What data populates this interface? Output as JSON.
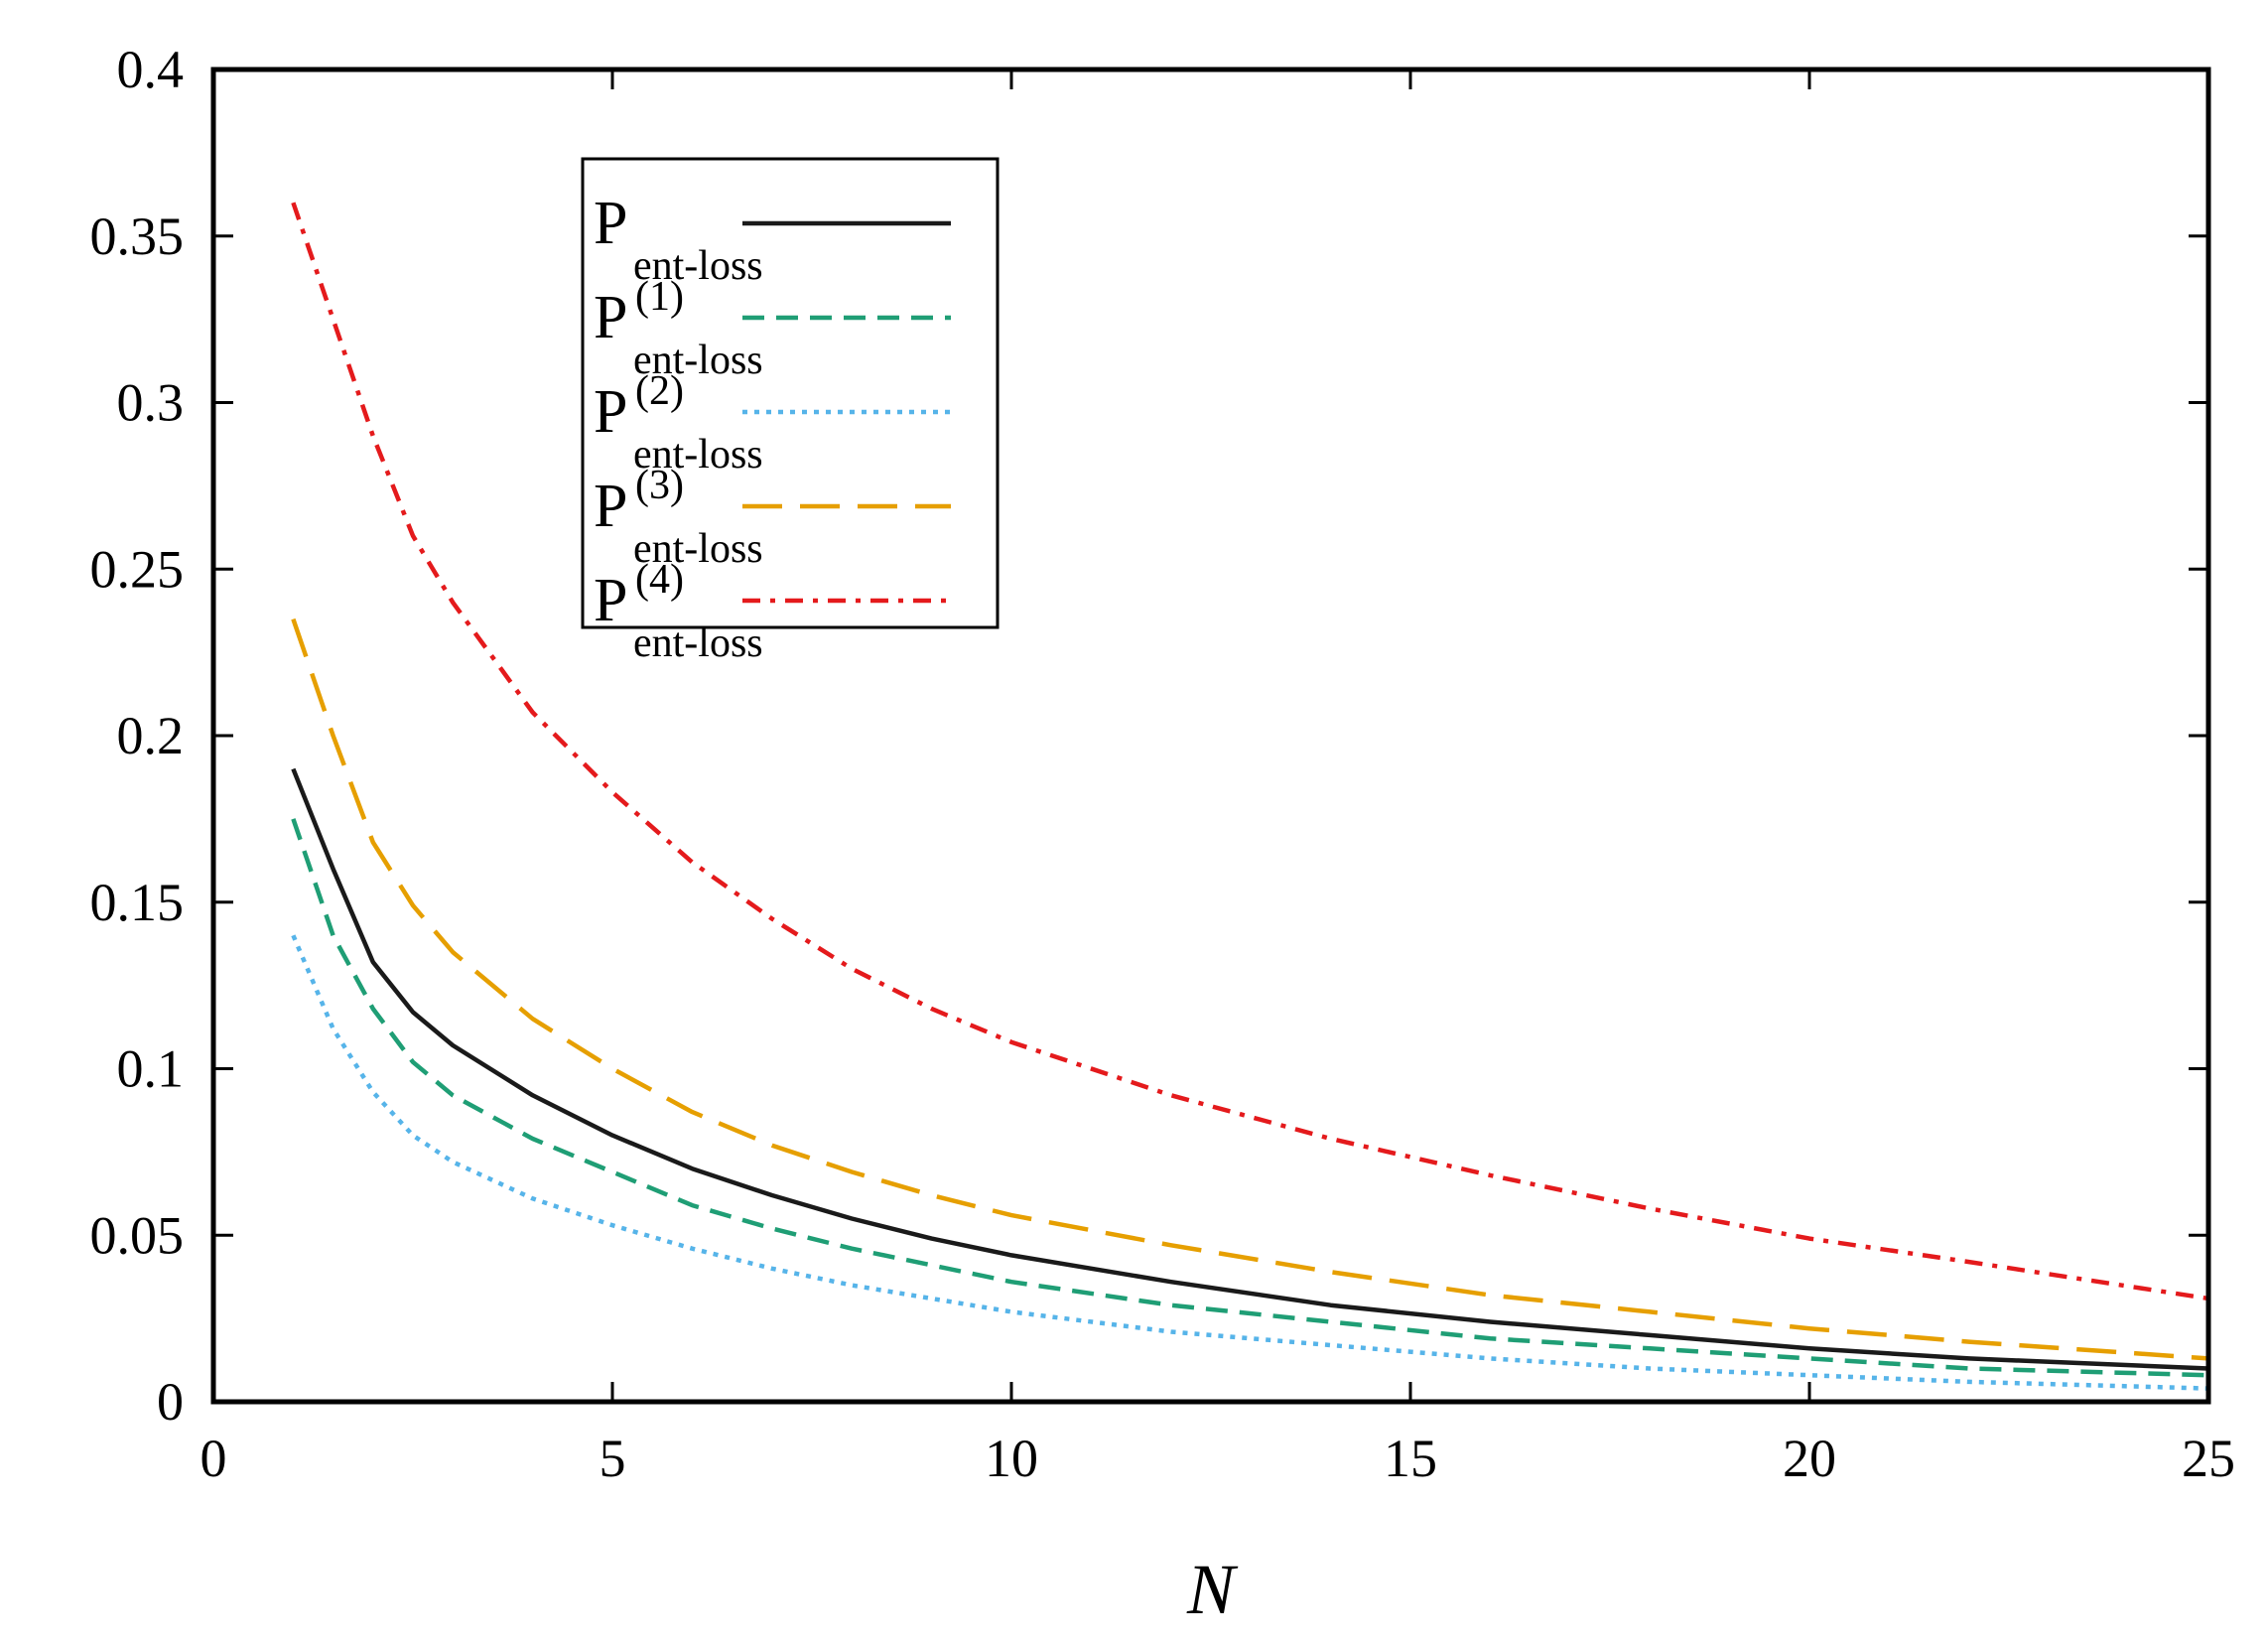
{
  "chart_data": {
    "type": "line",
    "title": "",
    "xlabel": "N",
    "ylabel": "",
    "xlim": [
      0,
      25
    ],
    "ylim": [
      0,
      0.4
    ],
    "x_ticks": [
      0,
      5,
      10,
      15,
      20,
      25
    ],
    "x_tick_labels": [
      "0",
      "5",
      "10",
      "15",
      "20",
      "25"
    ],
    "y_ticks": [
      0,
      0.05,
      0.1,
      0.15,
      0.2,
      0.25,
      0.3,
      0.35,
      0.4
    ],
    "y_tick_labels": [
      "0",
      "0.05",
      "0.1",
      "0.15",
      "0.2",
      "0.25",
      "0.3",
      "0.35",
      "0.4"
    ],
    "grid": false,
    "legend_position": "top-left",
    "x": [
      1,
      1.5,
      2,
      2.5,
      3,
      4,
      5,
      6,
      7,
      8,
      9,
      10,
      12,
      14,
      16,
      18,
      20,
      22,
      25
    ],
    "series": [
      {
        "name": "P",
        "sub": "ent-loss",
        "sup": "",
        "color": "#1a1a1a",
        "style": "solid",
        "values": [
          0.19,
          0.16,
          0.132,
          0.117,
          0.107,
          0.092,
          0.08,
          0.07,
          0.062,
          0.055,
          0.049,
          0.044,
          0.036,
          0.029,
          0.024,
          0.02,
          0.016,
          0.013,
          0.01
        ]
      },
      {
        "name": "P",
        "sub": "ent-loss",
        "sup": "(1)",
        "color": "#1f9e75",
        "style": "dashed",
        "values": [
          0.175,
          0.14,
          0.118,
          0.102,
          0.092,
          0.079,
          0.069,
          0.059,
          0.052,
          0.046,
          0.041,
          0.036,
          0.029,
          0.024,
          0.019,
          0.016,
          0.013,
          0.01,
          0.008
        ]
      },
      {
        "name": "P",
        "sub": "ent-loss",
        "sup": "(2)",
        "color": "#56b4e9",
        "style": "dotted",
        "values": [
          0.14,
          0.112,
          0.093,
          0.08,
          0.072,
          0.061,
          0.053,
          0.046,
          0.04,
          0.035,
          0.031,
          0.027,
          0.021,
          0.017,
          0.013,
          0.01,
          0.008,
          0.006,
          0.004
        ]
      },
      {
        "name": "P",
        "sub": "ent-loss",
        "sup": "(3)",
        "color": "#e69f00",
        "style": "longdash",
        "values": [
          0.235,
          0.2,
          0.168,
          0.149,
          0.135,
          0.115,
          0.1,
          0.087,
          0.077,
          0.069,
          0.062,
          0.056,
          0.047,
          0.039,
          0.032,
          0.027,
          0.022,
          0.018,
          0.013
        ]
      },
      {
        "name": "P",
        "sub": "ent-loss",
        "sup": "(4)",
        "color": "#e41a1c",
        "style": "dashdot",
        "values": [
          0.36,
          0.325,
          0.29,
          0.26,
          0.24,
          0.207,
          0.183,
          0.162,
          0.145,
          0.13,
          0.118,
          0.108,
          0.092,
          0.079,
          0.068,
          0.058,
          0.049,
          0.042,
          0.031
        ]
      }
    ]
  }
}
